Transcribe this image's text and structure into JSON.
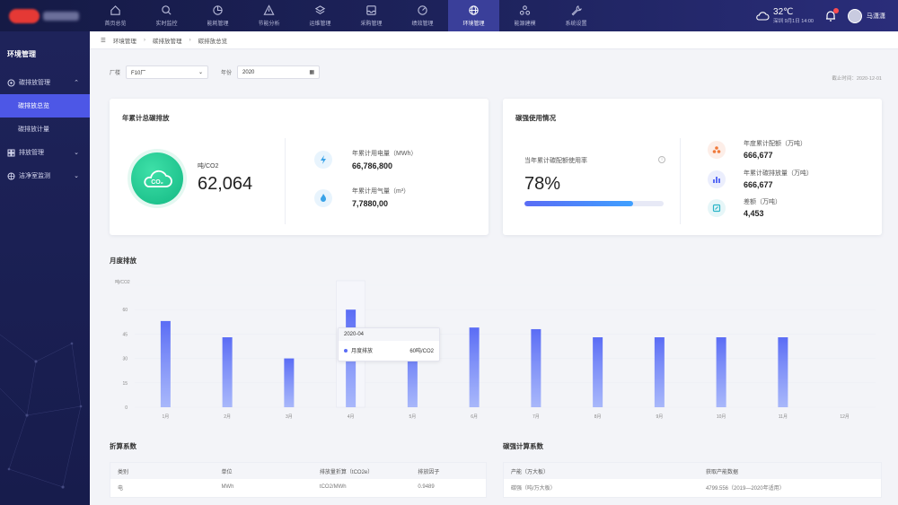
{
  "nav": {
    "items": [
      {
        "label": "首页总览",
        "icon": "home-icon"
      },
      {
        "label": "实时监控",
        "icon": "monitor-search-icon"
      },
      {
        "label": "能耗管理",
        "icon": "pie-chart-icon"
      },
      {
        "label": "节能分析",
        "icon": "warning-triangle-icon"
      },
      {
        "label": "运维管理",
        "icon": "layers-icon"
      },
      {
        "label": "采购管理",
        "icon": "inbox-icon"
      },
      {
        "label": "绩效管理",
        "icon": "gauge-icon"
      },
      {
        "label": "环境管理",
        "icon": "globe-icon"
      },
      {
        "label": "能源建模",
        "icon": "cluster-icon"
      },
      {
        "label": "系统设置",
        "icon": "wrench-icon"
      }
    ],
    "active": 7
  },
  "weather": {
    "temp": "32℃",
    "date": "深圳  9月1日 14:00"
  },
  "user": {
    "name": "马潇潇"
  },
  "sidebar": {
    "title": "环境管理",
    "groups": [
      {
        "label": "碳排放管理",
        "subs": [
          "碳排放总览",
          "碳排放计量"
        ]
      },
      {
        "label": "排放管理"
      },
      {
        "label": "洁净室监测"
      }
    ]
  },
  "breadcrumb": [
    "环境管理",
    "碳排放管理",
    "碳排放总览"
  ],
  "filters": {
    "factory_label": "厂楼",
    "factory_value": "F10厂",
    "year_label": "年份",
    "year_value": "2020"
  },
  "deadline": "截止时间：2020-12-01",
  "emissions": {
    "title": "年累计总碳排放",
    "unit": "吨/CO2",
    "value": "62,064",
    "badge": "CO₂",
    "electric_label": "年累计用电量（MWh）",
    "electric_value": "66,786,800",
    "gas_label": "年累计用气量（m³）",
    "gas_value": "7,7880,00"
  },
  "usage": {
    "title": "碳强使用情况",
    "rate_label": "当年累计碳配额使用率",
    "rate_value": "78%",
    "rate_fraction": 0.78,
    "quota_label": "年度累计配额（万吨）",
    "quota_value": "666,677",
    "emit_label": "年累计碳排放量（万吨）",
    "emit_value": "666,677",
    "diff_label": "差额（万吨）",
    "diff_value": "4,453"
  },
  "monthly_title": "月度排放",
  "chart_data": {
    "type": "bar",
    "ylabel": "吨/CO2",
    "ylim": [
      0,
      75
    ],
    "yticks": [
      "0",
      "15",
      "30",
      "45",
      "60"
    ],
    "categories": [
      "1月",
      "2月",
      "3月",
      "4月",
      "5月",
      "6月",
      "7月",
      "8月",
      "9月",
      "10月",
      "11月",
      "12月"
    ],
    "series": [
      {
        "name": "月度排放",
        "values": [
          53,
          43,
          30,
          60,
          40,
          49,
          48,
          43,
          43,
          43,
          43,
          0
        ]
      }
    ],
    "bar_color": "#5a6cf5",
    "tooltip": {
      "title": "2020-04",
      "series": "月度排放",
      "value": "60吨/CO2"
    }
  },
  "conversion": {
    "title": "折算系数",
    "headers": [
      "类别",
      "单位",
      "排放量折算（tCO2e）",
      "排放因子"
    ],
    "rows": [
      [
        "电",
        "MWh",
        "tCO2/MWh",
        "0.9489"
      ]
    ]
  },
  "carbon_calc": {
    "title": "碳强计算系数",
    "headers": [
      "产能（万大板）",
      "获取产能数据"
    ],
    "rows": [
      [
        "碳强（吨/万大板）",
        "4799.556（2019—2020年适用）"
      ]
    ]
  }
}
